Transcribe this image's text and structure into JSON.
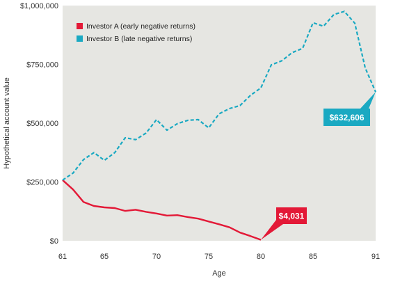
{
  "chart_data": {
    "type": "line",
    "xlabel": "Age",
    "ylabel": "Hypothetical account value",
    "xlim": [
      61,
      91
    ],
    "ylim": [
      0,
      1000000
    ],
    "x_ticks": [
      61,
      65,
      70,
      75,
      80,
      85,
      91
    ],
    "x_tick_labels": [
      "61",
      "65",
      "70",
      "75",
      "80",
      "85",
      "91"
    ],
    "y_ticks": [
      0,
      250000,
      500000,
      750000,
      1000000
    ],
    "y_tick_labels": [
      "$0",
      "$250,000",
      "$500,000",
      "$750,000",
      "$1,000,000"
    ],
    "grid": false,
    "legend_position": "top-left",
    "series": [
      {
        "name": "Investor A (early negative returns)",
        "color": "#e31937",
        "dash": "solid",
        "x": [
          61,
          62,
          63,
          64,
          65,
          66,
          67,
          68,
          69,
          70,
          71,
          72,
          73,
          74,
          75,
          76,
          77,
          78,
          79,
          80
        ],
        "values": [
          258000,
          218000,
          165000,
          148000,
          142000,
          139000,
          127000,
          132000,
          123000,
          116000,
          107000,
          109000,
          101000,
          94000,
          82000,
          70000,
          57000,
          35000,
          20000,
          4031
        ],
        "callout": "$4,031"
      },
      {
        "name": "Investor B (late negative returns)",
        "color": "#1aa9c2",
        "dash": "dashed",
        "x": [
          61,
          62,
          63,
          64,
          65,
          66,
          67,
          68,
          69,
          70,
          71,
          72,
          73,
          74,
          75,
          76,
          77,
          78,
          79,
          80,
          81,
          82,
          83,
          84,
          85,
          86,
          87,
          88,
          89,
          90,
          91
        ],
        "values": [
          258000,
          288000,
          345000,
          375000,
          342000,
          375000,
          438000,
          430000,
          458000,
          515000,
          470000,
          498000,
          512000,
          515000,
          480000,
          540000,
          562000,
          575000,
          618000,
          650000,
          748000,
          765000,
          800000,
          818000,
          927000,
          912000,
          962000,
          975000,
          925000,
          735000,
          632606
        ],
        "callout": "$632,606"
      }
    ]
  }
}
